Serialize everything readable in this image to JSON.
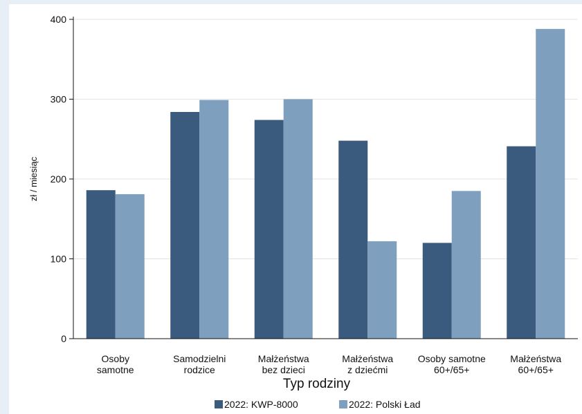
{
  "chart_data": {
    "type": "bar",
    "title": "",
    "xlabel": "Typ rodziny",
    "ylabel": "zł / miesiąc",
    "ylim": [
      0,
      400
    ],
    "yticks": [
      0,
      100,
      200,
      300,
      400
    ],
    "grid": true,
    "legend_position": "bottom",
    "categories": [
      [
        "Osoby",
        "samotne"
      ],
      [
        "Samodzielni",
        "rodzice"
      ],
      [
        "Małżeństwa",
        "bez dzieci"
      ],
      [
        "Małżeństwa",
        "z dziećmi"
      ],
      [
        "Osoby samotne",
        "60+/65+"
      ],
      [
        "Małżeństwa",
        "60+/65+"
      ]
    ],
    "series": [
      {
        "name": "2022: KWP-8000",
        "color": "#3a5a7e",
        "values": [
          186,
          284,
          274,
          248,
          120,
          241
        ]
      },
      {
        "name": "2022: Polski Ład",
        "color": "#7f9fbf",
        "values": [
          181,
          299,
          300,
          122,
          185,
          388
        ]
      }
    ]
  }
}
